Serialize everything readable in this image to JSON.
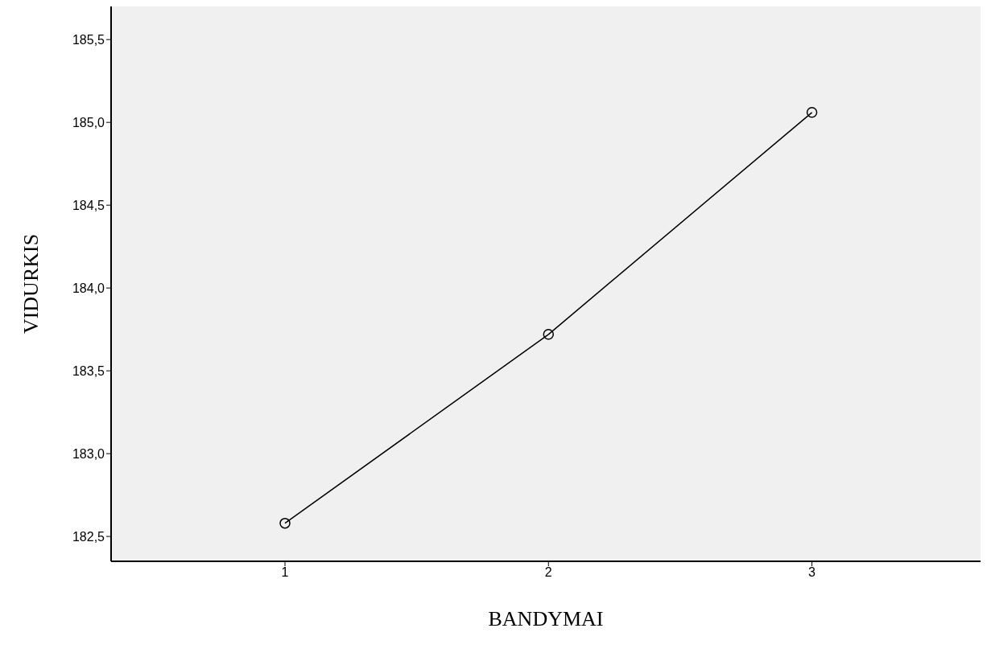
{
  "chart_data": {
    "type": "line",
    "xlabel": "BANDYMAI",
    "ylabel": "VIDURKIS",
    "x": [
      1,
      2,
      3
    ],
    "values": [
      182.58,
      183.72,
      185.06
    ],
    "color": "#000000",
    "marker": "circle",
    "xlim": [
      0.34,
      3.64
    ],
    "xticks": [
      1,
      2,
      3
    ],
    "ylim": [
      182.35,
      185.7
    ],
    "yticks": [
      {
        "value": 182.5,
        "label": "182,5"
      },
      {
        "value": 183,
        "label": "183,0"
      },
      {
        "value": 183.5,
        "label": "183,5"
      },
      {
        "value": 184,
        "label": "184,0"
      },
      {
        "value": 184.5,
        "label": "184,5"
      },
      {
        "value": 185,
        "label": "185,0"
      },
      {
        "value": 185.5,
        "label": "185,5"
      }
    ]
  }
}
